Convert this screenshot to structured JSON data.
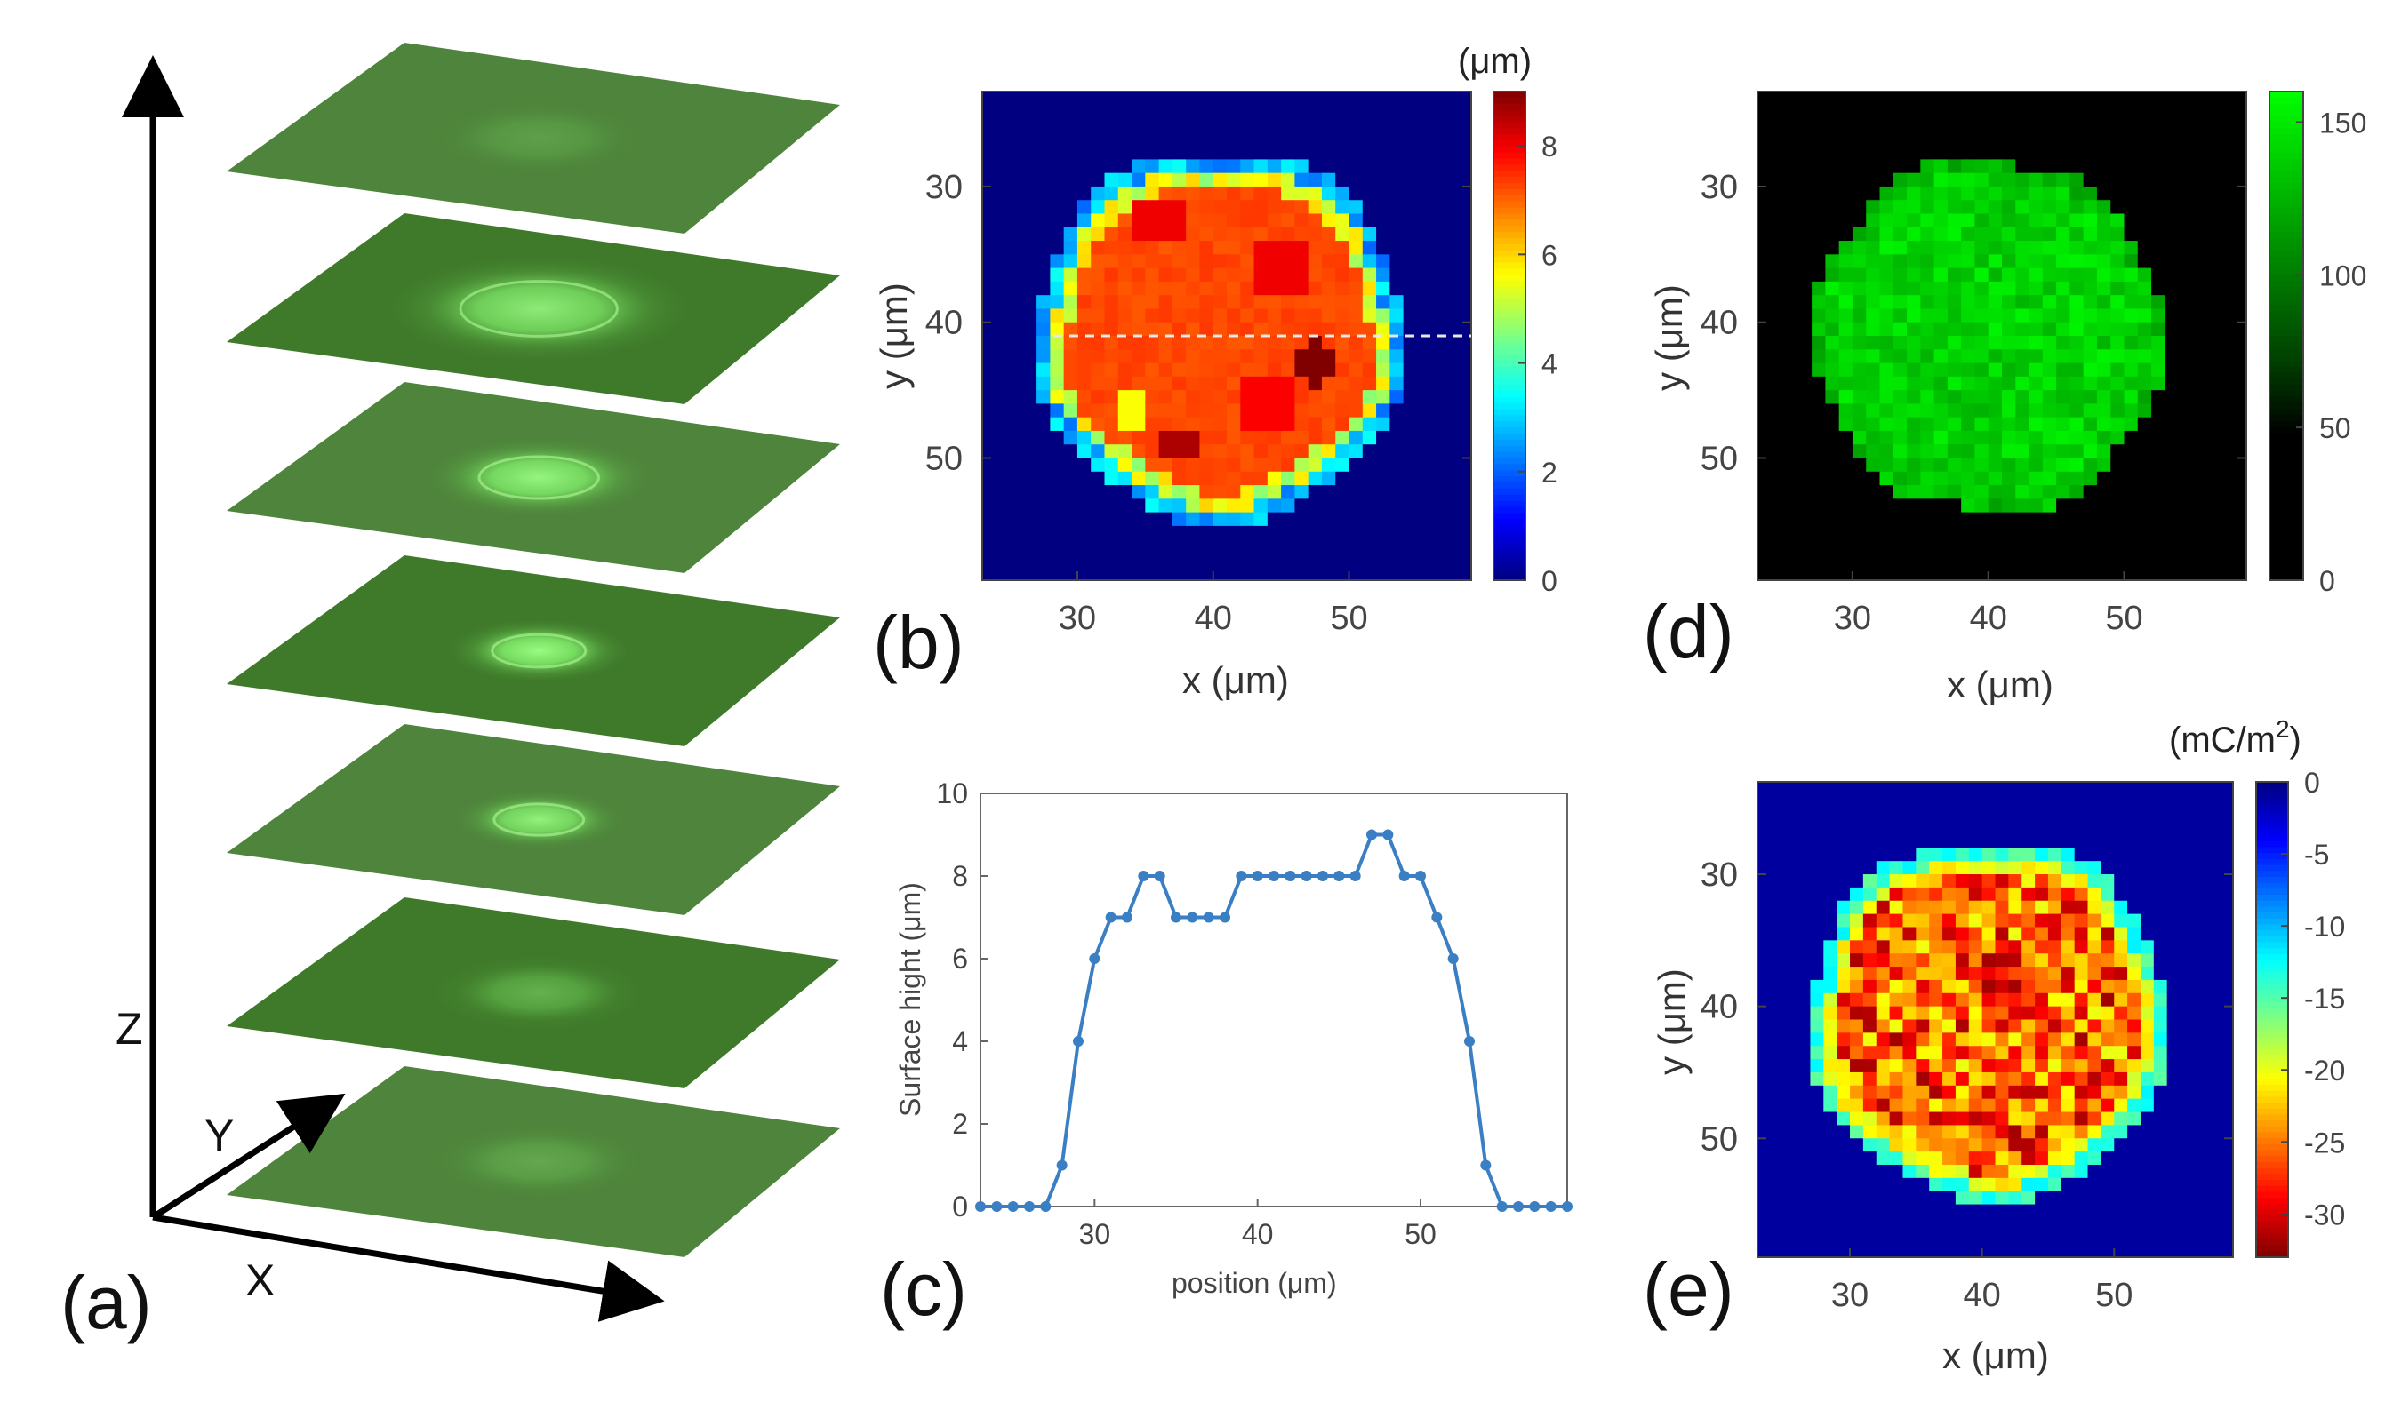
{
  "figure": {
    "panel_labels": [
      "(a)",
      "(b)",
      "(c)",
      "(d)",
      "(e)"
    ]
  },
  "chart_data": [
    {
      "id": "a",
      "type": "image_stack",
      "description_axes": {
        "x": "X",
        "y": "Y",
        "z": "Z"
      },
      "slices": [
        {
          "index": 0,
          "spot_intensity": 0.15,
          "spot_radius": 0.32
        },
        {
          "index": 1,
          "spot_intensity": 0.75,
          "spot_radius": 0.42
        },
        {
          "index": 2,
          "spot_intensity": 0.85,
          "spot_radius": 0.32
        },
        {
          "index": 3,
          "spot_intensity": 0.95,
          "spot_radius": 0.25
        },
        {
          "index": 4,
          "spot_intensity": 0.8,
          "spot_radius": 0.24
        },
        {
          "index": 5,
          "spot_intensity": 0.3,
          "spot_radius": 0.3
        },
        {
          "index": 6,
          "spot_intensity": 0.2,
          "spot_radius": 0.32
        }
      ],
      "colors": {
        "plane": "#3f7a2a",
        "spot": "#8ff07a"
      }
    },
    {
      "id": "b",
      "type": "heatmap",
      "xlabel": "x  (μm)",
      "ylabel": "y  (μm)",
      "xlim": [
        23,
        59
      ],
      "ylim": [
        59,
        23
      ],
      "xticks": [
        30,
        40,
        50
      ],
      "yticks": [
        30,
        40,
        50
      ],
      "colorbar": {
        "label": "(μm)",
        "min": 0,
        "max": 9,
        "ticks": [
          0,
          2,
          4,
          6,
          8
        ],
        "colormap": "jet"
      },
      "disk": {
        "cx": 40.5,
        "cy": 41,
        "r": 12.5
      },
      "dashed_line_y": 41,
      "peaks": [
        {
          "x": 47.5,
          "y": 43,
          "r": 1.6,
          "v": 9
        },
        {
          "x": 37.5,
          "y": 49,
          "r": 1.4,
          "v": 8.6
        },
        {
          "x": 36,
          "y": 32.5,
          "r": 2,
          "v": 8
        },
        {
          "x": 45,
          "y": 36,
          "r": 2.5,
          "v": 8
        },
        {
          "x": 44,
          "y": 46,
          "r": 2.5,
          "v": 7.9
        },
        {
          "x": 34,
          "y": 46.5,
          "r": 1.2,
          "v": 5.6
        }
      ]
    },
    {
      "id": "c",
      "type": "line",
      "xlabel": "position (μm)",
      "ylabel": "Surface hight (μm)",
      "xlim": [
        23,
        59
      ],
      "ylim": [
        0,
        10
      ],
      "xticks": [
        30,
        40,
        50
      ],
      "yticks": [
        0,
        2,
        4,
        6,
        8,
        10
      ],
      "x": [
        23,
        24,
        25,
        26,
        27,
        28,
        29,
        30,
        31,
        32,
        33,
        34,
        35,
        36,
        37,
        38,
        39,
        40,
        41,
        42,
        43,
        44,
        45,
        46,
        47,
        48,
        49,
        50,
        51,
        52,
        53,
        54,
        55,
        56,
        57,
        58,
        59
      ],
      "values": [
        0,
        0,
        0,
        0,
        0,
        1,
        4,
        6,
        7,
        7,
        8,
        8,
        7,
        7,
        7,
        7,
        8,
        8,
        8,
        8,
        8,
        8,
        8,
        8,
        9,
        9,
        8,
        8,
        7,
        6,
        4,
        1,
        0,
        0,
        0,
        0,
        0
      ],
      "color": "#3a7fc4"
    },
    {
      "id": "d",
      "type": "heatmap",
      "xlabel": "x  (μm)",
      "ylabel": "y  (μm)",
      "xlim": [
        23,
        59
      ],
      "ylim": [
        59,
        23
      ],
      "xticks": [
        30,
        40,
        50
      ],
      "yticks": [
        30,
        40,
        50
      ],
      "colorbar": {
        "min": 0,
        "max": 160,
        "ticks": [
          0,
          50,
          100,
          150
        ],
        "colormap": "black-green"
      },
      "disk": {
        "cx": 40,
        "cy": 41,
        "r": 13
      }
    },
    {
      "id": "e",
      "type": "heatmap",
      "xlabel": "x  (μm)",
      "ylabel": "y  (μm)",
      "xlim": [
        23,
        59
      ],
      "ylim": [
        59,
        23
      ],
      "xticks": [
        30,
        40,
        50
      ],
      "yticks": [
        30,
        40,
        50
      ],
      "colorbar": {
        "label": "(mC/m",
        "label_sup": "2",
        "label_end": ")",
        "min": -33,
        "max": 0,
        "ticks": [
          0,
          -5,
          -10,
          -15,
          -20,
          -25,
          -30
        ],
        "colormap": "jet_reversed"
      },
      "disk": {
        "cx": 40.5,
        "cy": 41,
        "r": 12.5
      }
    }
  ]
}
